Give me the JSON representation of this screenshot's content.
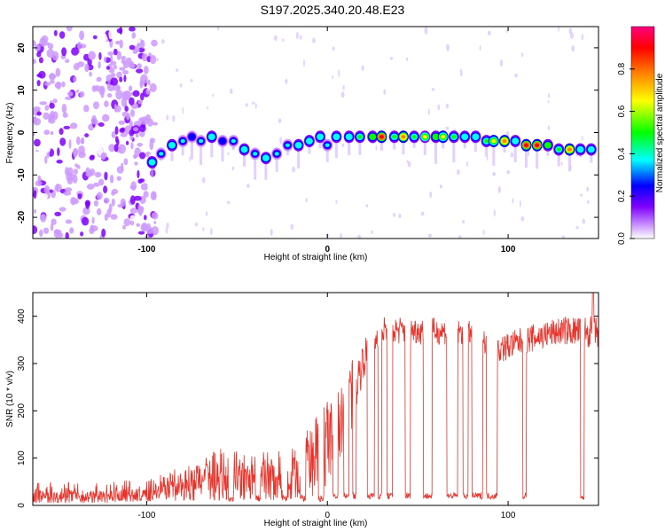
{
  "title": "S197.2025.340.20.48.E23",
  "chart_data": [
    {
      "type": "heatmap",
      "name": "spectrogram",
      "xlabel": "Height of straight line (km)",
      "ylabel": "Frequency (Hz)",
      "xlim": [
        -163,
        150
      ],
      "ylim": [
        -25,
        25
      ],
      "x_ticks": [
        -100,
        0,
        100
      ],
      "x_tick_labels": [
        "-100",
        "0",
        "100"
      ],
      "y_ticks": [
        20,
        10,
        0,
        -10,
        -20
      ],
      "y_tick_labels": [
        "20",
        "10",
        "0",
        "-10",
        "-20"
      ],
      "noise_region_x": [
        -163,
        -95
      ],
      "signal_track": [
        {
          "x": -97,
          "f": -7,
          "amp": 0.45
        },
        {
          "x": -92,
          "f": -5,
          "amp": 0.4
        },
        {
          "x": -86,
          "f": -3,
          "amp": 0.45
        },
        {
          "x": -80,
          "f": -2,
          "amp": 0.4
        },
        {
          "x": -75,
          "f": -1,
          "amp": 0.35
        },
        {
          "x": -70,
          "f": -2,
          "amp": 0.4
        },
        {
          "x": -64,
          "f": -1,
          "amp": 0.45
        },
        {
          "x": -58,
          "f": -2,
          "amp": 0.35
        },
        {
          "x": -52,
          "f": -2,
          "amp": 0.4
        },
        {
          "x": -46,
          "f": -4,
          "amp": 0.45
        },
        {
          "x": -40,
          "f": -5,
          "amp": 0.4
        },
        {
          "x": -34,
          "f": -6,
          "amp": 0.45
        },
        {
          "x": -28,
          "f": -5,
          "amp": 0.4
        },
        {
          "x": -22,
          "f": -3,
          "amp": 0.4
        },
        {
          "x": -16,
          "f": -3,
          "amp": 0.45
        },
        {
          "x": -10,
          "f": -2,
          "amp": 0.45
        },
        {
          "x": -4,
          "f": -1,
          "amp": 0.45
        },
        {
          "x": 0,
          "f": -3,
          "amp": 0.4
        },
        {
          "x": 5,
          "f": -1,
          "amp": 0.45
        },
        {
          "x": 12,
          "f": -1,
          "amp": 0.5
        },
        {
          "x": 18,
          "f": -1,
          "amp": 0.55
        },
        {
          "x": 25,
          "f": -1,
          "amp": 0.6
        },
        {
          "x": 30,
          "f": -1,
          "amp": 0.95
        },
        {
          "x": 37,
          "f": -1,
          "amp": 0.55
        },
        {
          "x": 42,
          "f": -1,
          "amp": 0.9
        },
        {
          "x": 48,
          "f": -1,
          "amp": 0.55
        },
        {
          "x": 54,
          "f": -1,
          "amp": 0.7
        },
        {
          "x": 60,
          "f": -1,
          "amp": 0.6
        },
        {
          "x": 64,
          "f": -1,
          "amp": 0.75
        },
        {
          "x": 70,
          "f": -1,
          "amp": 0.55
        },
        {
          "x": 76,
          "f": -1,
          "amp": 0.5
        },
        {
          "x": 82,
          "f": -1,
          "amp": 0.45
        },
        {
          "x": 88,
          "f": -2,
          "amp": 0.55
        },
        {
          "x": 92,
          "f": -2,
          "amp": 0.75
        },
        {
          "x": 98,
          "f": -2,
          "amp": 0.85
        },
        {
          "x": 104,
          "f": -2,
          "amp": 0.5
        },
        {
          "x": 110,
          "f": -3,
          "amp": 0.95
        },
        {
          "x": 116,
          "f": -3,
          "amp": 0.98
        },
        {
          "x": 122,
          "f": -3,
          "amp": 0.6
        },
        {
          "x": 128,
          "f": -4,
          "amp": 0.55
        },
        {
          "x": 134,
          "f": -4,
          "amp": 0.9
        },
        {
          "x": 140,
          "f": -4,
          "amp": 0.5
        },
        {
          "x": 146,
          "f": -4,
          "amp": 0.45
        }
      ],
      "colorbar": {
        "label": "Normalized spectral amplitude",
        "range": [
          0,
          1
        ],
        "ticks": [
          0.0,
          0.2,
          0.4,
          0.6,
          0.8
        ],
        "tick_labels": [
          "0.0",
          "0.2",
          "0.4",
          "0.6",
          "0.8"
        ],
        "colors": [
          "#ffffff",
          "#cc99ff",
          "#7f00ff",
          "#0000ff",
          "#00ffff",
          "#00ff00",
          "#ffff00",
          "#ff8000",
          "#ff0000",
          "#ff0080"
        ]
      }
    },
    {
      "type": "line",
      "name": "snr",
      "xlabel": "Height of straight line (km)",
      "ylabel": "SNR (10 * v/v)",
      "xlim": [
        -163,
        150
      ],
      "ylim": [
        0,
        450
      ],
      "x_ticks": [
        -100,
        0,
        100
      ],
      "x_tick_labels": [
        "-100",
        "0",
        "100"
      ],
      "y_ticks": [
        0,
        100,
        200,
        300,
        400
      ],
      "y_tick_labels": [
        "0",
        "100",
        "200",
        "300",
        "400"
      ],
      "color": "#e8332b",
      "envelope": [
        {
          "x": -163,
          "lo": 5,
          "hi": 30
        },
        {
          "x": -120,
          "lo": 5,
          "hi": 30
        },
        {
          "x": -95,
          "lo": 8,
          "hi": 40
        },
        {
          "x": -80,
          "lo": 10,
          "hi": 70
        },
        {
          "x": -60,
          "lo": 10,
          "hi": 100
        },
        {
          "x": -40,
          "lo": 10,
          "hi": 90
        },
        {
          "x": -20,
          "lo": 10,
          "hi": 110
        },
        {
          "x": -10,
          "lo": 15,
          "hi": 150
        },
        {
          "x": 0,
          "lo": 40,
          "hi": 200
        },
        {
          "x": 10,
          "lo": 100,
          "hi": 250
        },
        {
          "x": 20,
          "lo": 270,
          "hi": 350
        },
        {
          "x": 30,
          "lo": 340,
          "hi": 400
        },
        {
          "x": 50,
          "lo": 340,
          "hi": 400
        },
        {
          "x": 80,
          "lo": 340,
          "hi": 390
        },
        {
          "x": 95,
          "lo": 300,
          "hi": 360
        },
        {
          "x": 110,
          "lo": 320,
          "hi": 380
        },
        {
          "x": 130,
          "lo": 340,
          "hi": 400
        },
        {
          "x": 150,
          "lo": 330,
          "hi": 400
        }
      ],
      "dropouts": [
        {
          "x0": -55,
          "x1": -52,
          "v": 15
        },
        {
          "x0": -40,
          "x1": -37,
          "v": 15
        },
        {
          "x0": -25,
          "x1": -22,
          "v": 15
        },
        {
          "x0": -15,
          "x1": -12,
          "v": 15
        },
        {
          "x0": -5,
          "x1": -2,
          "v": 15
        },
        {
          "x0": 3,
          "x1": 6,
          "v": 20
        },
        {
          "x0": 9,
          "x1": 12,
          "v": 20
        },
        {
          "x0": 14,
          "x1": 16,
          "v": 20
        },
        {
          "x0": 22,
          "x1": 26,
          "v": 20
        },
        {
          "x0": 28,
          "x1": 30,
          "v": 20
        },
        {
          "x0": 33,
          "x1": 36,
          "v": 20
        },
        {
          "x0": 43,
          "x1": 46,
          "v": 20
        },
        {
          "x0": 53,
          "x1": 58,
          "v": 20
        },
        {
          "x0": 66,
          "x1": 72,
          "v": 20
        },
        {
          "x0": 75,
          "x1": 78,
          "v": 20
        },
        {
          "x0": 80,
          "x1": 86,
          "v": 20
        },
        {
          "x0": 88,
          "x1": 94,
          "v": 20
        },
        {
          "x0": 108,
          "x1": 110,
          "v": 20
        },
        {
          "x0": 140,
          "x1": 142,
          "v": 15
        }
      ],
      "peak": {
        "x": 147,
        "v": 450
      }
    }
  ]
}
